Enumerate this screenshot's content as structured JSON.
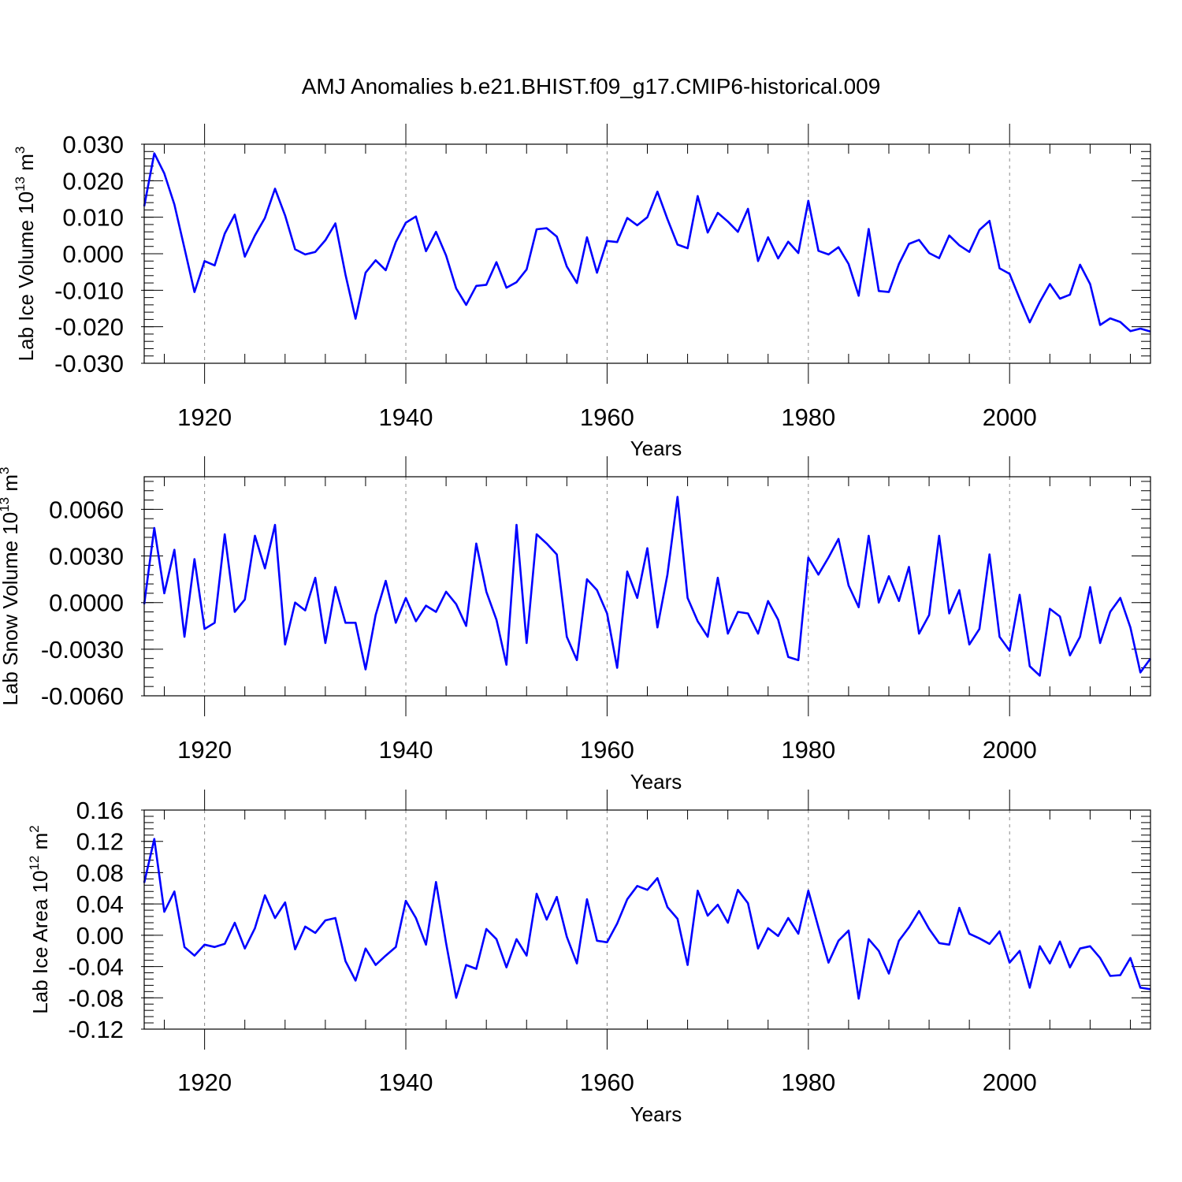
{
  "figure": {
    "title": "AMJ Anomalies b.e21.BHIST.f09_g17.CMIP6-historical.009"
  },
  "chart_data": [
    {
      "type": "line",
      "ylabel": {
        "text": "Lab Ice Volume 10",
        "exp": "13",
        "unit": " m",
        "unit_exp": "3"
      },
      "xlabel": "Years",
      "xlim": [
        1914,
        2014
      ],
      "ylim": [
        -0.03,
        0.03
      ],
      "ymajor": [
        -0.03,
        -0.02,
        -0.01,
        0.0,
        0.01,
        0.02,
        0.03
      ],
      "ytick_labels": [
        "-0.030",
        "-0.020",
        "-0.010",
        "0.000",
        "0.010",
        "0.020",
        "0.030"
      ],
      "yminor_step": 0.002,
      "xmajor": [
        1920,
        1940,
        1960,
        1980,
        2000
      ],
      "xtick_labels": [
        "1920",
        "1940",
        "1960",
        "1980",
        "2000"
      ],
      "xminor_step": 4,
      "grid": "vertical dashed at major years",
      "color": "#0000ff",
      "x_start": 1914,
      "values": [
        0.013,
        0.0275,
        0.022,
        0.0135,
        0.0015,
        -0.0105,
        -0.002,
        -0.0032,
        0.0055,
        0.0107,
        -0.0008,
        0.005,
        0.0098,
        0.0178,
        0.0105,
        0.0012,
        -0.0002,
        0.0005,
        0.0037,
        0.0083,
        -0.0057,
        -0.0178,
        -0.0052,
        -0.0018,
        -0.0045,
        0.0032,
        0.0085,
        0.0102,
        0.0007,
        0.006,
        -0.0005,
        -0.0095,
        -0.014,
        -0.0088,
        -0.0085,
        -0.0023,
        -0.0093,
        -0.0078,
        -0.0043,
        0.0067,
        0.007,
        0.0047,
        -0.0035,
        -0.008,
        0.0045,
        -0.0052,
        0.0035,
        0.0032,
        0.0098,
        0.0078,
        0.01,
        0.017,
        0.0095,
        0.0025,
        0.0015,
        0.0158,
        0.0058,
        0.0112,
        0.0088,
        0.006,
        0.0123,
        -0.002,
        0.0045,
        -0.0013,
        0.0033,
        0.0002,
        0.0145,
        0.0008,
        -0.0002,
        0.0018,
        -0.0028,
        -0.0115,
        0.0068,
        -0.0102,
        -0.0105,
        -0.0028,
        0.0027,
        0.0038,
        0.0002,
        -0.0012,
        0.005,
        0.0023,
        0.0005,
        0.0065,
        0.009,
        -0.004,
        -0.0055,
        -0.0123,
        -0.0188,
        -0.0132,
        -0.0083,
        -0.0123,
        -0.0112,
        -0.003,
        -0.0083,
        -0.0195,
        -0.0177,
        -0.0187,
        -0.0212,
        -0.0205,
        -0.0213
      ]
    },
    {
      "type": "line",
      "ylabel": {
        "text": "Lab Snow Volume 10",
        "exp": "13",
        "unit": " m",
        "unit_exp": "3"
      },
      "xlabel": "Years",
      "xlim": [
        1914,
        2014
      ],
      "ylim": [
        -0.006,
        0.0081
      ],
      "ymajor": [
        -0.006,
        -0.003,
        0.0,
        0.003,
        0.006
      ],
      "ytick_labels": [
        "-0.0060",
        "-0.0030",
        "0.0000",
        "0.0030",
        "0.0060"
      ],
      "yminor_step": 0.0006,
      "xmajor": [
        1920,
        1940,
        1960,
        1980,
        2000
      ],
      "xtick_labels": [
        "1920",
        "1940",
        "1960",
        "1980",
        "2000"
      ],
      "xminor_step": 4,
      "grid": "vertical dashed at major years",
      "color": "#0000ff",
      "x_start": 1914,
      "values": [
        -0.0001,
        0.0048,
        0.0006,
        0.0034,
        -0.0022,
        0.0028,
        -0.0017,
        -0.0013,
        0.0044,
        -0.0006,
        0.0002,
        0.0043,
        0.0022,
        0.005,
        -0.0027,
        0.0,
        -0.0005,
        0.0016,
        -0.0026,
        0.001,
        -0.0013,
        -0.0013,
        -0.0043,
        -0.0008,
        0.0014,
        -0.0013,
        0.0003,
        -0.0012,
        -0.0002,
        -0.0006,
        0.0007,
        -0.0001,
        -0.0015,
        0.0038,
        0.0007,
        -0.0011,
        -0.004,
        0.005,
        -0.0026,
        0.0044,
        0.0038,
        0.0031,
        -0.0022,
        -0.0037,
        0.0015,
        0.0008,
        -0.0007,
        -0.0042,
        0.002,
        0.0003,
        0.0035,
        -0.0016,
        0.0018,
        0.0068,
        0.0003,
        -0.0012,
        -0.0022,
        0.0016,
        -0.002,
        -0.0006,
        -0.0007,
        -0.002,
        0.0001,
        -0.0011,
        -0.0035,
        -0.0037,
        0.0029,
        0.0018,
        0.0029,
        0.0041,
        0.0011,
        -0.0003,
        0.0043,
        0.0,
        0.0017,
        0.0001,
        0.0023,
        -0.002,
        -0.0008,
        0.0043,
        -0.0007,
        0.0008,
        -0.0027,
        -0.0017,
        0.0031,
        -0.0022,
        -0.0031,
        0.0005,
        -0.0041,
        -0.0047,
        -0.0004,
        -0.0009,
        -0.0034,
        -0.0022,
        0.001,
        -0.0026,
        -0.0006,
        0.0003,
        -0.0016,
        -0.0045,
        -0.0036
      ]
    },
    {
      "type": "line",
      "ylabel": {
        "text": "Lab Ice Area 10",
        "exp": "12",
        "unit": " m",
        "unit_exp": "2"
      },
      "xlabel": "Years",
      "xlim": [
        1914,
        2014
      ],
      "ylim": [
        -0.12,
        0.16
      ],
      "ymajor": [
        -0.12,
        -0.08,
        -0.04,
        0.0,
        0.04,
        0.08,
        0.12,
        0.16
      ],
      "ytick_labels": [
        "-0.12",
        "-0.08",
        "-0.04",
        "0.00",
        "0.04",
        "0.08",
        "0.12",
        "0.16"
      ],
      "yminor_step": 0.008,
      "xmajor": [
        1920,
        1940,
        1960,
        1980,
        2000
      ],
      "xtick_labels": [
        "1920",
        "1940",
        "1960",
        "1980",
        "2000"
      ],
      "xminor_step": 4,
      "grid": "vertical dashed at major years",
      "color": "#0000ff",
      "x_start": 1914,
      "values": [
        0.067,
        0.123,
        0.03,
        0.056,
        -0.015,
        -0.026,
        -0.012,
        -0.015,
        -0.011,
        0.016,
        -0.017,
        0.009,
        0.051,
        0.022,
        0.042,
        -0.018,
        0.011,
        0.003,
        0.019,
        0.022,
        -0.033,
        -0.058,
        -0.017,
        -0.038,
        -0.026,
        -0.015,
        0.044,
        0.022,
        -0.012,
        0.068,
        -0.01,
        -0.08,
        -0.038,
        -0.043,
        0.008,
        -0.005,
        -0.041,
        -0.005,
        -0.026,
        0.053,
        0.02,
        0.049,
        -0.002,
        -0.036,
        0.046,
        -0.007,
        -0.009,
        0.015,
        0.046,
        0.063,
        0.058,
        0.073,
        0.036,
        0.021,
        -0.038,
        0.057,
        0.025,
        0.039,
        0.016,
        0.058,
        0.041,
        -0.017,
        0.009,
        -0.001,
        0.022,
        0.002,
        0.057,
        0.01,
        -0.035,
        -0.007,
        0.006,
        -0.081,
        -0.005,
        -0.02,
        -0.049,
        -0.007,
        0.01,
        0.031,
        0.008,
        -0.01,
        -0.012,
        0.035,
        0.002,
        -0.004,
        -0.011,
        0.005,
        -0.035,
        -0.02,
        -0.067,
        -0.014,
        -0.036,
        -0.008,
        -0.041,
        -0.017,
        -0.014,
        -0.029,
        -0.052,
        -0.051,
        -0.029,
        -0.067,
        -0.069
      ]
    }
  ]
}
